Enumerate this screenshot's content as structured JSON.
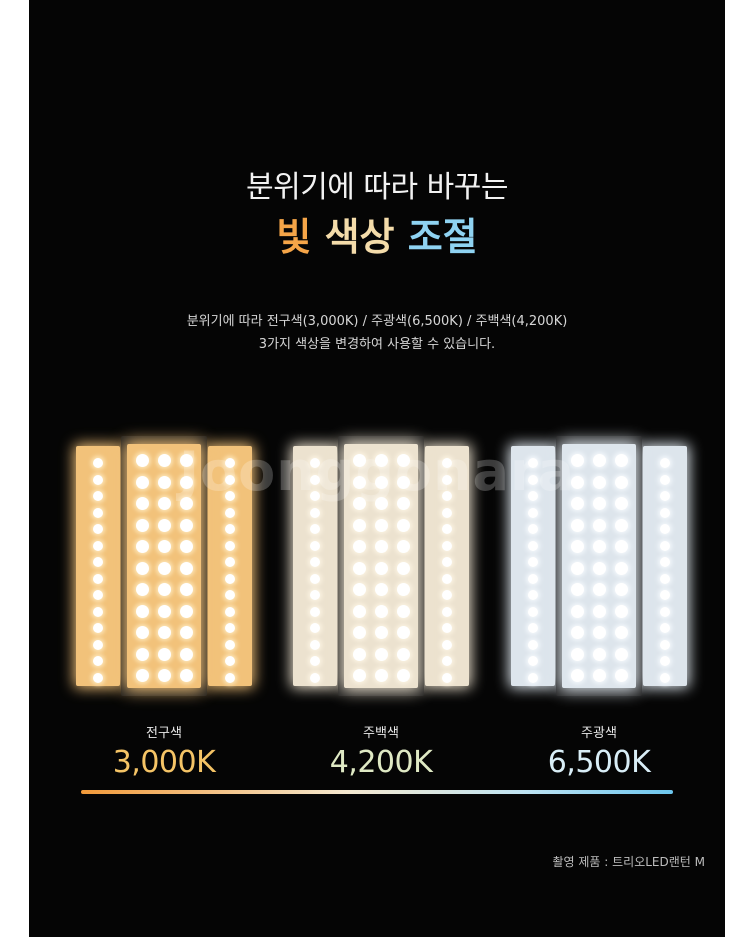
{
  "headline": "분위기에 따라 바꾸는",
  "title_words": [
    "빛",
    "색상",
    "조절"
  ],
  "colors": {
    "panel": "#050505",
    "warm": "#f5a548",
    "neutral": "#f4dcaa",
    "cool": "#8fd3f2"
  },
  "description": [
    "분위기에 따라 전구색(3,000K) / 주광색(6,500K) / 주백색(4,200K)",
    "3가지 색상을 변경하여 사용할 수 있습니다."
  ],
  "watermark": "Joonggonara",
  "modes": [
    {
      "name": "전구색",
      "kelvin": "3,000K",
      "color": "#f2c27a",
      "glow": "#fde6b8",
      "text_color": "#f5c466"
    },
    {
      "name": "주백색",
      "kelvin": "4,200K",
      "color": "#ece2cf",
      "glow": "#fbf3e2",
      "text_color": "#dfe9c4"
    },
    {
      "name": "주광색",
      "kelvin": "6,500K",
      "color": "#dde5ec",
      "glow": "#f3f7fb",
      "text_color": "#d9eef7"
    }
  ],
  "gradient": [
    "#f29a3a",
    "#f5e9d0",
    "#bfe4f3",
    "#6cc6ee"
  ],
  "footnote": "촬영 제품 : 트리오LED랜턴 M"
}
